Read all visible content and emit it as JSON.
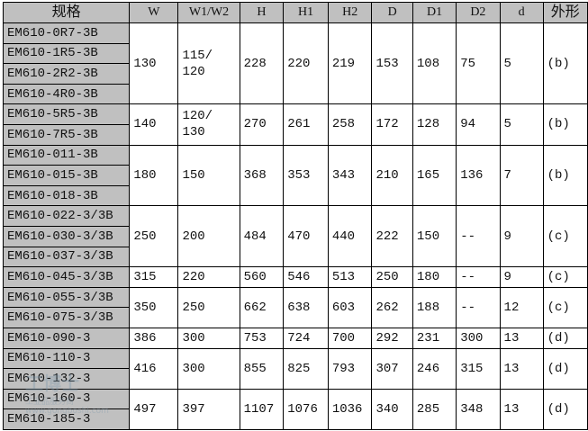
{
  "columns": [
    "规格",
    "W",
    "W1/W2",
    "H",
    "H1",
    "H2",
    "D",
    "D1",
    "D2",
    "d",
    "外形"
  ],
  "groups": [
    {
      "specs": [
        "EM610-0R7-3B",
        "EM610-1R5-3B",
        "EM610-2R2-3B",
        "EM610-4R0-3B"
      ],
      "values": [
        "130",
        "115/\n120",
        "228",
        "220",
        "219",
        "153",
        "108",
        "75",
        "5",
        "(b)"
      ]
    },
    {
      "specs": [
        "EM610-5R5-3B",
        "EM610-7R5-3B"
      ],
      "values": [
        "140",
        "120/\n130",
        "270",
        "261",
        "258",
        "172",
        "128",
        "94",
        "5",
        "(b)"
      ]
    },
    {
      "specs": [
        "EM610-011-3B",
        "EM610-015-3B",
        "EM610-018-3B"
      ],
      "values": [
        "180",
        "150",
        "368",
        "353",
        "343",
        "210",
        "165",
        "136",
        "7",
        "(b)"
      ]
    },
    {
      "specs": [
        "EM610-022-3/3B",
        "EM610-030-3/3B",
        "EM610-037-3/3B"
      ],
      "values": [
        "250",
        "200",
        "484",
        "470",
        "440",
        "222",
        "150",
        "--",
        "9",
        "(c)"
      ]
    },
    {
      "specs": [
        "EM610-045-3/3B"
      ],
      "values": [
        "315",
        "220",
        "560",
        "546",
        "513",
        "250",
        "180",
        "--",
        "9",
        "(c)"
      ]
    },
    {
      "specs": [
        "EM610-055-3/3B",
        "EM610-075-3/3B"
      ],
      "values": [
        "350",
        "250",
        "662",
        "638",
        "603",
        "262",
        "188",
        "--",
        "12",
        "(c)"
      ]
    },
    {
      "specs": [
        "EM610-090-3"
      ],
      "values": [
        "386",
        "300",
        "753",
        "724",
        "700",
        "292",
        "231",
        "300",
        "13",
        "(d)"
      ]
    },
    {
      "specs": [
        "EM610-110-3",
        "EM610-132-3"
      ],
      "values": [
        "416",
        "300",
        "855",
        "825",
        "793",
        "307",
        "246",
        "315",
        "13",
        "(d)"
      ]
    },
    {
      "specs": [
        "EM610-160-3",
        "EM610-185-3"
      ],
      "values": [
        "497",
        "397",
        "1107",
        "1076",
        "1036",
        "340",
        "285",
        "348",
        "13",
        "(d)"
      ]
    }
  ],
  "watermark": {
    "logo_text": "工博士",
    "subtitle": "工业品服务商",
    "url": "www.gongboshi.com"
  },
  "colors": {
    "header_bg": "#c0c0c0",
    "spec_bg": "#c0c0c0",
    "border": "#000000"
  }
}
